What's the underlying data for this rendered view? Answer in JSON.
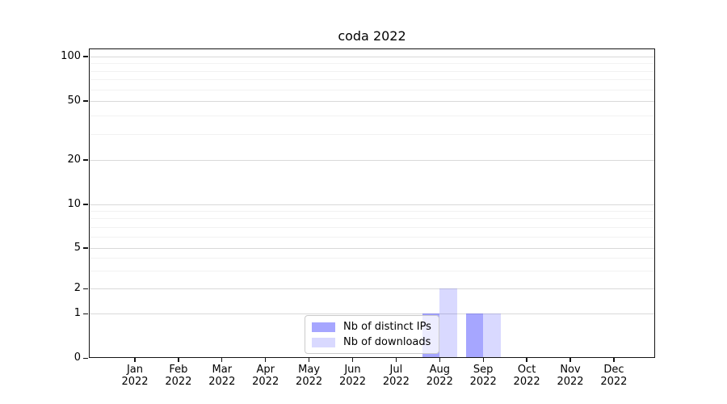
{
  "chart_data": {
    "type": "bar",
    "title": "coda 2022",
    "categories": [
      "Jan 2022",
      "Feb 2022",
      "Mar 2022",
      "Apr 2022",
      "May 2022",
      "Jun 2022",
      "Jul 2022",
      "Aug 2022",
      "Sep 2022",
      "Oct 2022",
      "Nov 2022",
      "Dec 2022"
    ],
    "series": [
      {
        "name": "Nb of distinct IPs",
        "color": "#0000ff59",
        "values": [
          0,
          0,
          0,
          0,
          0,
          0,
          0,
          1,
          1,
          0,
          0,
          0
        ]
      },
      {
        "name": "Nb of downloads",
        "color": "#0000ff26",
        "values": [
          0,
          0,
          0,
          0,
          0,
          0,
          0,
          2,
          1,
          0,
          0,
          0
        ]
      }
    ],
    "xlabel": "",
    "ylabel": "",
    "yscale": "symlog",
    "ylim": [
      0,
      115
    ],
    "yticks": [
      0,
      1,
      2,
      5,
      10,
      20,
      50,
      100
    ],
    "minor_yticks": [
      3,
      4,
      6,
      7,
      8,
      9,
      30,
      40,
      60,
      70,
      80,
      90
    ],
    "grid": "horizontal",
    "legend_position": "lower center"
  }
}
